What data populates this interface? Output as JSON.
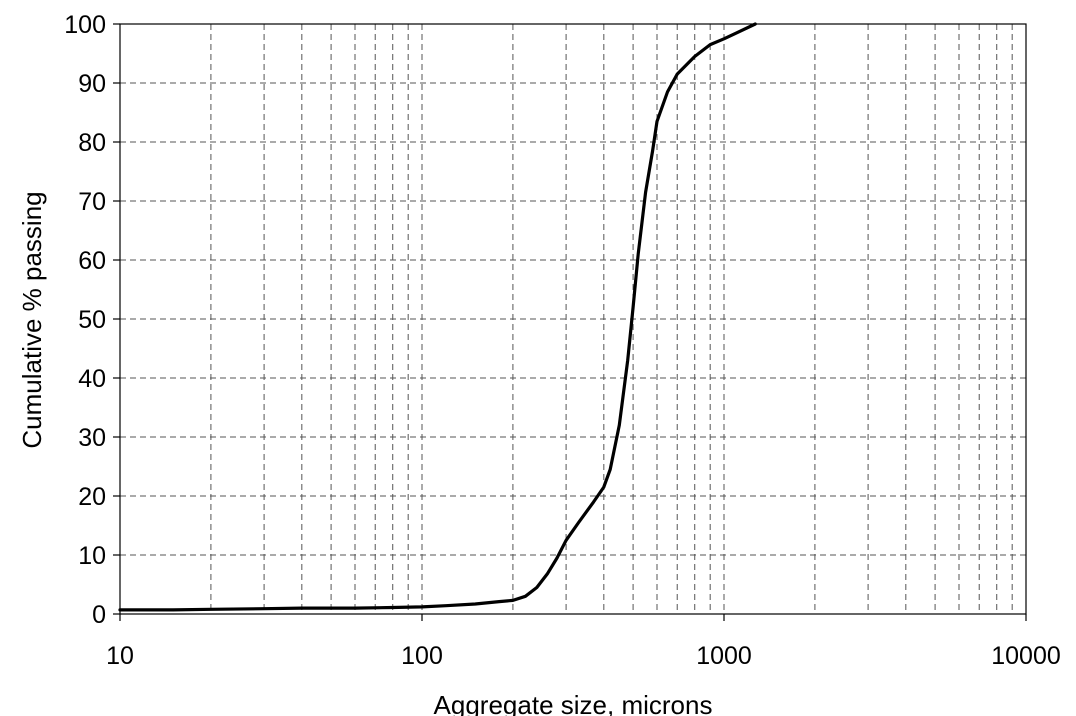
{
  "chart_data": {
    "type": "line",
    "title": "",
    "xlabel": "Aggregate size, microns",
    "ylabel": "Cumulative % passing",
    "xscale": "log",
    "xlim": [
      10,
      10000
    ],
    "ylim": [
      0,
      100
    ],
    "grid": true,
    "grid_style": "dashed",
    "legend": "none",
    "x_ticks": [
      "10",
      "100",
      "1000",
      "10000"
    ],
    "y_ticks": [
      "0",
      "10",
      "20",
      "30",
      "40",
      "50",
      "60",
      "70",
      "80",
      "90",
      "100"
    ],
    "series": [
      {
        "color": "#000000",
        "x": [
          10,
          15,
          20,
          30,
          40,
          60,
          80,
          100,
          120,
          150,
          180,
          200,
          220,
          240,
          260,
          280,
          300,
          330,
          370,
          400,
          420,
          450,
          480,
          500,
          520,
          550,
          580,
          600,
          650,
          700,
          800,
          900,
          1000,
          1100,
          1270
        ],
        "y": [
          0.7,
          0.7,
          0.8,
          0.9,
          1.0,
          1.0,
          1.1,
          1.2,
          1.4,
          1.7,
          2.1,
          2.3,
          3.0,
          4.5,
          6.8,
          9.5,
          12.5,
          15.5,
          19.0,
          21.5,
          24.5,
          32.0,
          43.0,
          52.0,
          61.0,
          71.5,
          78.5,
          83.5,
          88.5,
          91.5,
          94.5,
          96.5,
          97.5,
          98.5,
          100.0
        ]
      }
    ]
  }
}
